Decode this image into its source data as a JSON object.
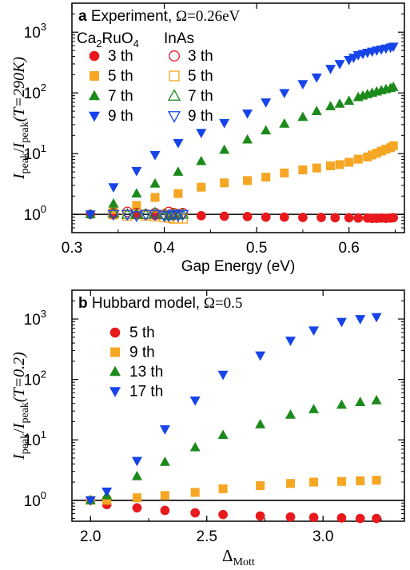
{
  "chart_data": [
    {
      "type": "scatter",
      "panel_letter": "a",
      "title": "Experiment, Ω = 0.26eV",
      "xlabel": "Gap Energy (eV)",
      "ylabel": "I_peak / I_peak(T = 290K)",
      "xlim": [
        0.3,
        0.66
      ],
      "ylim": [
        0.5,
        3000
      ],
      "yscale": "log",
      "xticks": [
        0.3,
        0.4,
        0.5,
        0.6
      ],
      "yticks": [
        1,
        10,
        100,
        1000
      ],
      "reference_line_y": 1,
      "legend_placement": "top-left",
      "legend_group_titles": [
        "Ca₂RuO₄",
        "InAs"
      ],
      "series": [
        {
          "name": "3 th",
          "group": "Ca₂RuO₄",
          "marker": "circle",
          "filled": true,
          "color": "#e8191c",
          "x": [
            0.32,
            0.345,
            0.37,
            0.39,
            0.41,
            0.44,
            0.465,
            0.49,
            0.51,
            0.53,
            0.55,
            0.57,
            0.585,
            0.6,
            0.61,
            0.62,
            0.625,
            0.63,
            0.635,
            0.64,
            0.645,
            0.648
          ],
          "y": [
            1.0,
            0.98,
            0.97,
            0.96,
            0.95,
            0.95,
            0.93,
            0.92,
            0.9,
            0.9,
            0.89,
            0.89,
            0.88,
            0.88,
            0.87,
            0.87,
            0.86,
            0.86,
            0.87,
            0.86,
            0.87,
            0.88
          ]
        },
        {
          "name": "5 th",
          "group": "Ca₂RuO₄",
          "marker": "square",
          "filled": true,
          "color": "#f5a623",
          "x": [
            0.345,
            0.37,
            0.39,
            0.415,
            0.44,
            0.465,
            0.49,
            0.51,
            0.53,
            0.55,
            0.565,
            0.58,
            0.59,
            0.6,
            0.61,
            0.62,
            0.625,
            0.63,
            0.635,
            0.64,
            0.645,
            0.648
          ],
          "y": [
            1.2,
            1.4,
            1.9,
            2.2,
            2.8,
            3.3,
            3.6,
            4.1,
            4.8,
            5.4,
            5.8,
            6.3,
            6.6,
            7.2,
            8.1,
            8.8,
            9.5,
            10.2,
            11.0,
            11.8,
            12.5,
            13.5
          ]
        },
        {
          "name": "7 th",
          "group": "Ca₂RuO₄",
          "marker": "triangle-up",
          "filled": true,
          "color": "#1b8a1b",
          "x": [
            0.32,
            0.345,
            0.37,
            0.39,
            0.415,
            0.44,
            0.465,
            0.49,
            0.51,
            0.53,
            0.55,
            0.565,
            0.58,
            0.59,
            0.6,
            0.61,
            0.615,
            0.62,
            0.625,
            0.63,
            0.635,
            0.64,
            0.645,
            0.648
          ],
          "y": [
            1.0,
            1.5,
            2.2,
            3.2,
            5.0,
            7.5,
            11.5,
            17,
            24,
            31,
            40,
            50,
            60,
            66,
            74,
            85,
            90,
            95,
            100,
            105,
            110,
            115,
            120,
            125
          ]
        },
        {
          "name": "9 th",
          "group": "Ca₂RuO₄",
          "marker": "triangle-down",
          "filled": true,
          "color": "#1744e8",
          "x": [
            0.32,
            0.345,
            0.37,
            0.39,
            0.415,
            0.44,
            0.465,
            0.49,
            0.51,
            0.53,
            0.55,
            0.565,
            0.58,
            0.59,
            0.6,
            0.605,
            0.61,
            0.615,
            0.62,
            0.625,
            0.63,
            0.635,
            0.64,
            0.645,
            0.648
          ],
          "y": [
            1.0,
            2.8,
            5.2,
            9.5,
            15,
            22,
            32,
            46,
            70,
            100,
            140,
            180,
            250,
            300,
            350,
            380,
            420,
            440,
            460,
            480,
            500,
            520,
            540,
            560,
            580
          ]
        },
        {
          "name": "3 th",
          "group": "InAs",
          "marker": "circle",
          "filled": false,
          "color": "#e8191c",
          "x": [
            0.345,
            0.36,
            0.37,
            0.38,
            0.39,
            0.4,
            0.405,
            0.41,
            0.415,
            0.42
          ],
          "y": [
            1.05,
            1.1,
            1.05,
            1.0,
            1.05,
            1.0,
            1.1,
            1.05,
            1.0,
            1.05
          ]
        },
        {
          "name": "5 th",
          "group": "InAs",
          "marker": "square",
          "filled": false,
          "color": "#f5a623",
          "x": [
            0.345,
            0.36,
            0.37,
            0.38,
            0.39,
            0.4,
            0.405,
            0.41,
            0.415,
            0.42
          ],
          "y": [
            1.0,
            0.95,
            1.0,
            0.95,
            0.92,
            0.9,
            0.88,
            0.85,
            0.85,
            0.85
          ]
        },
        {
          "name": "7 th",
          "group": "InAs",
          "marker": "triangle-up",
          "filled": false,
          "color": "#1b8a1b",
          "x": [
            0.345,
            0.36,
            0.37,
            0.38,
            0.39,
            0.4,
            0.405,
            0.41,
            0.415,
            0.42
          ],
          "y": [
            1.05,
            1.0,
            1.0,
            1.0,
            1.05,
            0.98,
            0.95,
            1.0,
            0.98,
            1.0
          ]
        },
        {
          "name": "9 th",
          "group": "InAs",
          "marker": "triangle-down",
          "filled": false,
          "color": "#1744e8",
          "x": [
            0.345,
            0.36,
            0.37,
            0.38,
            0.39,
            0.4,
            0.405,
            0.41,
            0.415,
            0.42
          ],
          "y": [
            1.0,
            1.0,
            0.95,
            1.0,
            1.0,
            0.95,
            0.95,
            1.0,
            0.95,
            1.0
          ]
        }
      ]
    },
    {
      "type": "scatter",
      "panel_letter": "b",
      "title": "Hubbard model, Ω = 0.5",
      "xlabel": "Δ_Mott",
      "ylabel": "I_peak / I_peak(T = 0.2)",
      "xlim": [
        1.92,
        3.35
      ],
      "ylim": [
        0.45,
        3000
      ],
      "yscale": "log",
      "xticks": [
        2.0,
        2.5,
        3.0
      ],
      "yticks": [
        1,
        10,
        100,
        1000
      ],
      "reference_line_y": 1,
      "legend_placement": "top-left",
      "series": [
        {
          "name": "5 th",
          "marker": "circle",
          "filled": true,
          "color": "#e8191c",
          "x": [
            2.0,
            2.07,
            2.2,
            2.32,
            2.45,
            2.57,
            2.73,
            2.86,
            2.96,
            3.08,
            3.16,
            3.23
          ],
          "y": [
            1.0,
            0.85,
            0.75,
            0.68,
            0.62,
            0.58,
            0.55,
            0.53,
            0.52,
            0.51,
            0.5,
            0.5
          ]
        },
        {
          "name": "9 th",
          "marker": "square",
          "filled": true,
          "color": "#f5a623",
          "x": [
            2.0,
            2.07,
            2.2,
            2.32,
            2.45,
            2.57,
            2.73,
            2.86,
            2.96,
            3.08,
            3.16,
            3.23
          ],
          "y": [
            1.0,
            1.0,
            1.1,
            1.2,
            1.35,
            1.55,
            1.75,
            1.9,
            2.0,
            2.05,
            2.1,
            2.15
          ]
        },
        {
          "name": "13 th",
          "marker": "triangle-up",
          "filled": true,
          "color": "#1b8a1b",
          "x": [
            2.0,
            2.07,
            2.2,
            2.32,
            2.45,
            2.57,
            2.73,
            2.86,
            2.96,
            3.08,
            3.16,
            3.23
          ],
          "y": [
            1.0,
            1.2,
            2.5,
            4.3,
            7.5,
            12,
            18,
            26,
            32,
            38,
            42,
            45
          ]
        },
        {
          "name": "17 th",
          "marker": "triangle-down",
          "filled": true,
          "color": "#1744e8",
          "x": [
            2.0,
            2.07,
            2.2,
            2.32,
            2.45,
            2.57,
            2.73,
            2.86,
            2.96,
            3.08,
            3.16,
            3.23
          ],
          "y": [
            1.0,
            1.4,
            4.5,
            15,
            45,
            120,
            250,
            440,
            650,
            900,
            1000,
            1080
          ]
        }
      ]
    }
  ]
}
